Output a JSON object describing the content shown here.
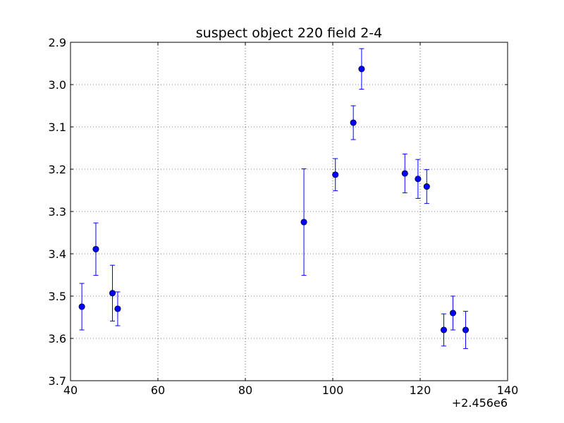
{
  "chart_data": {
    "type": "scatter",
    "title": "suspect object 220 field 2-4",
    "xlabel": "",
    "ylabel": "",
    "x_offset_label": "+2.456e6",
    "xlim": [
      40,
      140
    ],
    "ylim": [
      2.9,
      3.7
    ],
    "y_inverted": true,
    "grid": true,
    "x_ticks": [
      40,
      60,
      80,
      100,
      120,
      140
    ],
    "y_ticks": [
      2.9,
      3.0,
      3.1,
      3.2,
      3.3,
      3.4,
      3.5,
      3.6,
      3.7
    ],
    "x_tick_labels": [
      "40",
      "60",
      "80",
      "100",
      "120",
      "140"
    ],
    "y_tick_labels": [
      "2.9",
      "3.0",
      "3.1",
      "3.2",
      "3.3",
      "3.4",
      "3.5",
      "3.6",
      "3.7"
    ],
    "color": "#0000ff",
    "points": [
      {
        "x": 42.6,
        "y": 3.525,
        "err": 0.055
      },
      {
        "x": 45.8,
        "y": 3.389,
        "err": 0.062
      },
      {
        "x": 49.6,
        "y": 3.493,
        "err": 0.066
      },
      {
        "x": 50.8,
        "y": 3.53,
        "err": 0.04
      },
      {
        "x": 93.4,
        "y": 3.325,
        "err": 0.126
      },
      {
        "x": 100.6,
        "y": 3.213,
        "err": 0.038
      },
      {
        "x": 104.7,
        "y": 3.09,
        "err": 0.04
      },
      {
        "x": 106.6,
        "y": 2.963,
        "err": 0.048
      },
      {
        "x": 116.5,
        "y": 3.21,
        "err": 0.046
      },
      {
        "x": 119.5,
        "y": 3.223,
        "err": 0.046
      },
      {
        "x": 121.5,
        "y": 3.241,
        "err": 0.04
      },
      {
        "x": 125.4,
        "y": 3.58,
        "err": 0.038
      },
      {
        "x": 127.5,
        "y": 3.54,
        "err": 0.04
      },
      {
        "x": 130.4,
        "y": 3.58,
        "err": 0.044
      }
    ]
  }
}
